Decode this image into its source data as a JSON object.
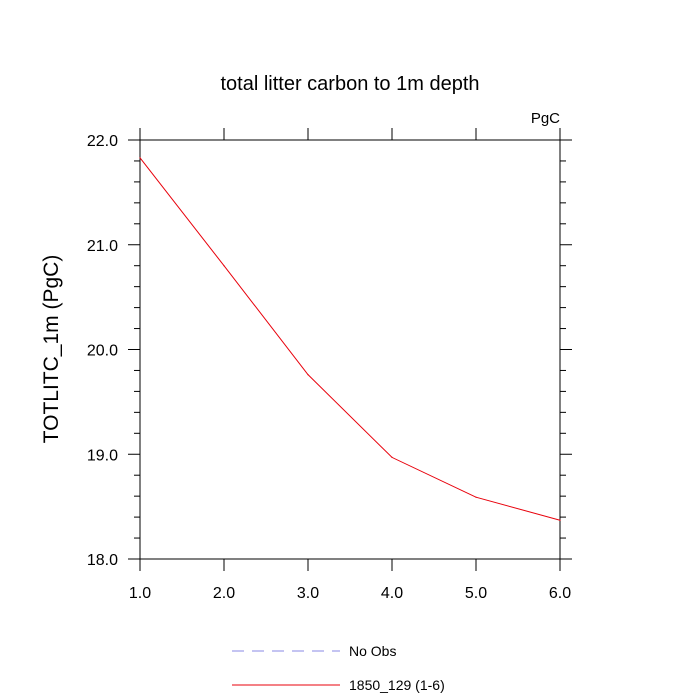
{
  "chart_data": {
    "type": "line",
    "title": "total litter carbon to 1m depth",
    "units_label": "PgC",
    "xlabel": "",
    "ylabel": "TOTLITC_1m  (PgC)",
    "xlim": [
      1.0,
      6.0
    ],
    "ylim": [
      18.0,
      22.0
    ],
    "x_ticks": [
      1.0,
      2.0,
      3.0,
      4.0,
      5.0,
      6.0
    ],
    "x_tick_labels": [
      "1.0",
      "2.0",
      "3.0",
      "4.0",
      "5.0",
      "6.0"
    ],
    "y_ticks": [
      18.0,
      19.0,
      20.0,
      21.0,
      22.0
    ],
    "y_tick_labels": [
      "18.0",
      "19.0",
      "20.0",
      "21.0",
      "22.0"
    ],
    "grid": false,
    "legend_position": "bottom-center",
    "series": [
      {
        "name": "No Obs",
        "color": "#8a8ae6",
        "style": "dashed",
        "x": [],
        "values": []
      },
      {
        "name": "1850_129 (1-6)",
        "color": "#e8000b",
        "style": "solid",
        "x": [
          1,
          2,
          3,
          4,
          5,
          6
        ],
        "values": [
          21.83,
          20.8,
          19.76,
          18.97,
          18.59,
          18.37
        ]
      }
    ]
  }
}
